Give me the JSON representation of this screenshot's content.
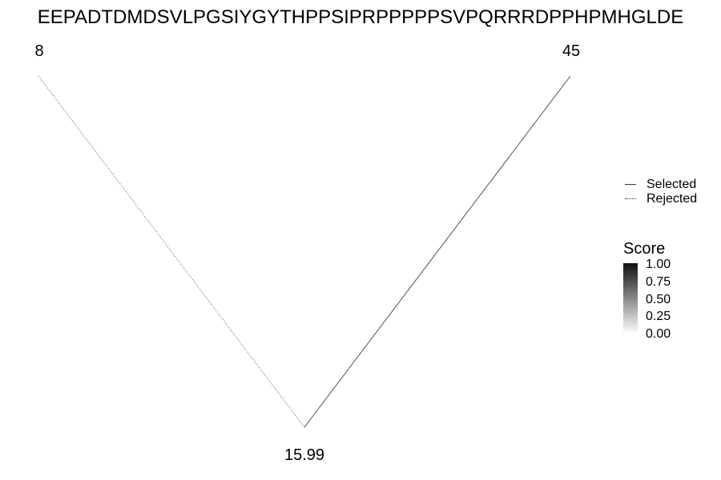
{
  "sequence": "EEPADTDMDSVLPGSIYGYTHPPSIPRPPPPPSVPQRRRDPPHPMHGLDE",
  "nodes": {
    "left_label": "8",
    "right_label": "45",
    "root_label": "15.99"
  },
  "edges": [
    {
      "from": "root",
      "to": "left",
      "status": "Rejected"
    },
    {
      "from": "root",
      "to": "right",
      "status": "Selected"
    }
  ],
  "legend": {
    "linetype": [
      {
        "label": "Selected",
        "style": "solid"
      },
      {
        "label": "Rejected",
        "style": "dotted"
      }
    ],
    "score": {
      "title": "Score",
      "ticks": [
        "1.00",
        "0.75",
        "0.50",
        "0.25",
        "0.00"
      ],
      "color_high": "#111111",
      "color_low": "#ffffff"
    }
  }
}
